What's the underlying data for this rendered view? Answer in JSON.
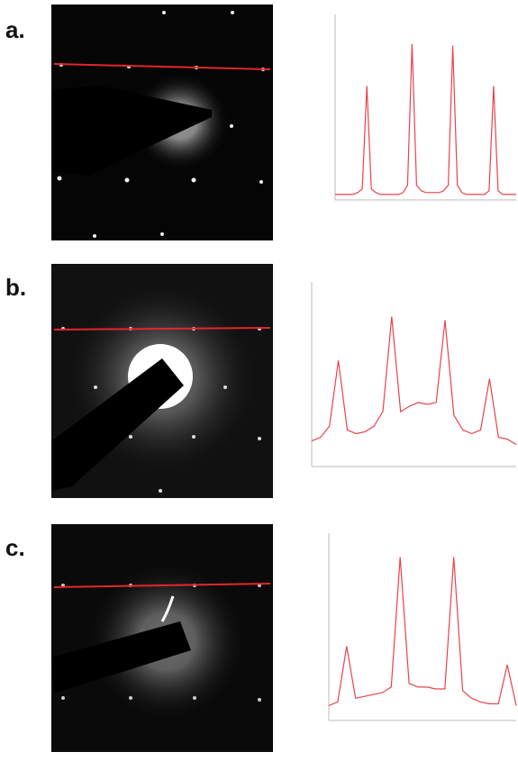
{
  "panels": [
    {
      "label": "a.",
      "chart_data": {
        "type": "line",
        "color": "#e8434a",
        "ylim": [
          0,
          100
        ],
        "values": [
          3,
          3,
          3,
          3,
          3,
          4,
          6,
          62,
          6,
          4,
          3,
          3,
          3,
          3,
          3,
          4,
          8,
          85,
          8,
          5,
          4,
          4,
          4,
          4,
          5,
          8,
          84,
          8,
          4,
          3,
          3,
          3,
          3,
          3,
          5,
          62,
          5,
          3,
          3,
          3,
          3
        ]
      }
    },
    {
      "label": "b.",
      "chart_data": {
        "type": "line",
        "color": "#e8434a",
        "ylim": [
          0,
          100
        ],
        "values": [
          14,
          16,
          22,
          58,
          20,
          18,
          19,
          22,
          30,
          82,
          30,
          33,
          35,
          34,
          35,
          80,
          28,
          20,
          18,
          20,
          48,
          16,
          15,
          12
        ]
      }
    },
    {
      "label": "c.",
      "chart_data": {
        "type": "line",
        "color": "#e8434a",
        "ylim": [
          0,
          100
        ],
        "values": [
          8,
          10,
          40,
          12,
          13,
          14,
          15,
          18,
          88,
          20,
          18,
          18,
          17,
          17,
          88,
          16,
          12,
          10,
          9,
          9,
          30,
          8
        ]
      }
    }
  ]
}
